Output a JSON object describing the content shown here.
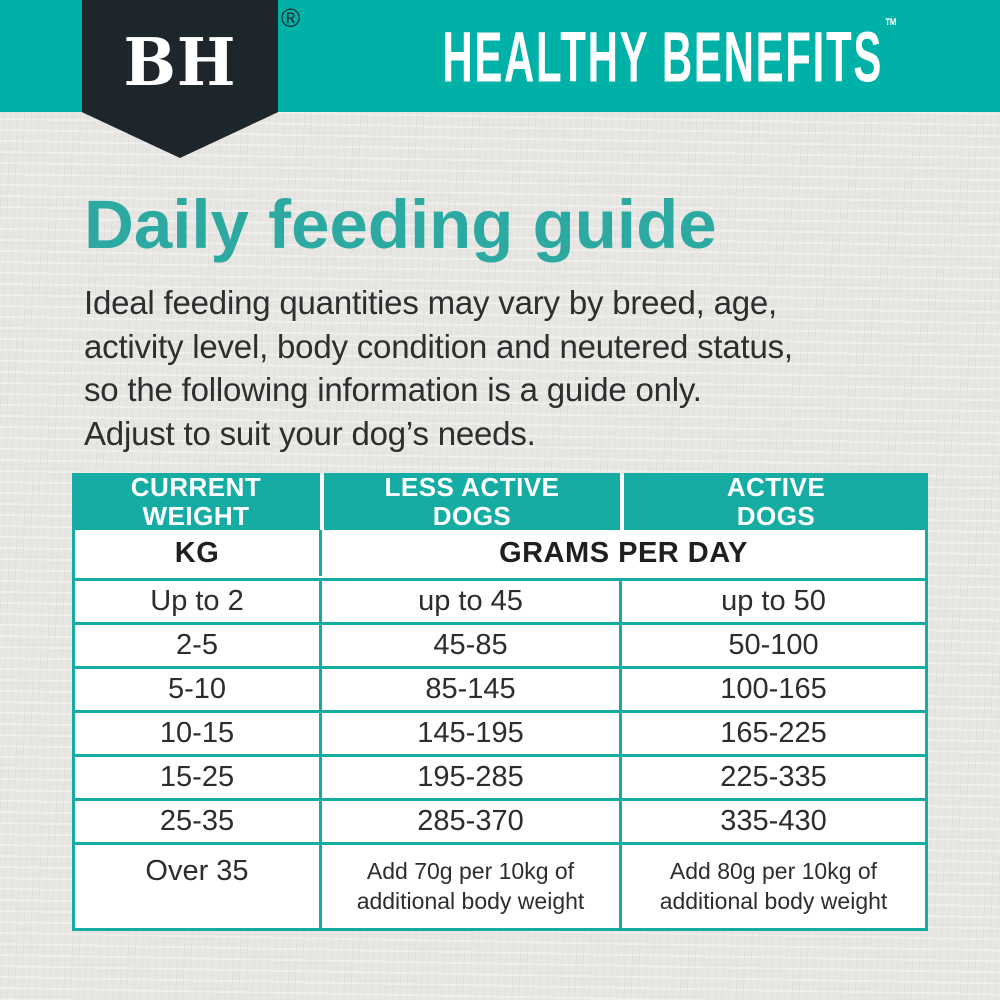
{
  "colors": {
    "band_teal": "#00b1a7",
    "table_teal": "#14aca3",
    "title_teal": "#2caaa2",
    "pennant_dark": "#1d262b",
    "text_dark": "#2e2e2e",
    "page_bg": "#e7e6e3",
    "white": "#ffffff"
  },
  "brand": {
    "logo": "BH",
    "registered": "®",
    "wordmark": "HEALTHY BENEFITS",
    "trademark": "™"
  },
  "intro": {
    "title": "Daily feeding guide",
    "lines": [
      "Ideal feeding quantities may vary by breed, age,",
      "activity level, body condition and neutered status,",
      "so the following information is a guide only.",
      "Adjust to suit your dog’s needs."
    ]
  },
  "table": {
    "columns": [
      {
        "line1": "CURRENT",
        "line2": "WEIGHT"
      },
      {
        "line1": "LESS ACTIVE",
        "line2": "DOGS"
      },
      {
        "line1": "ACTIVE",
        "line2": "DOGS"
      }
    ],
    "units": {
      "weight": "KG",
      "grams": "GRAMS PER DAY"
    },
    "rows": [
      {
        "weight": "Up to 2",
        "less_active": "up to 45",
        "active": "up to 50"
      },
      {
        "weight": "2-5",
        "less_active": "45-85",
        "active": "50-100"
      },
      {
        "weight": "5-10",
        "less_active": "85-145",
        "active": "100-165"
      },
      {
        "weight": "10-15",
        "less_active": "145-195",
        "active": "165-225"
      },
      {
        "weight": "15-25",
        "less_active": "195-285",
        "active": "225-335"
      },
      {
        "weight": "25-35",
        "less_active": "285-370",
        "active": "335-430"
      },
      {
        "weight": "Over 35",
        "less_active": "Add 70g per 10kg of additional body weight",
        "active": "Add 80g per 10kg of additional body weight"
      }
    ]
  }
}
